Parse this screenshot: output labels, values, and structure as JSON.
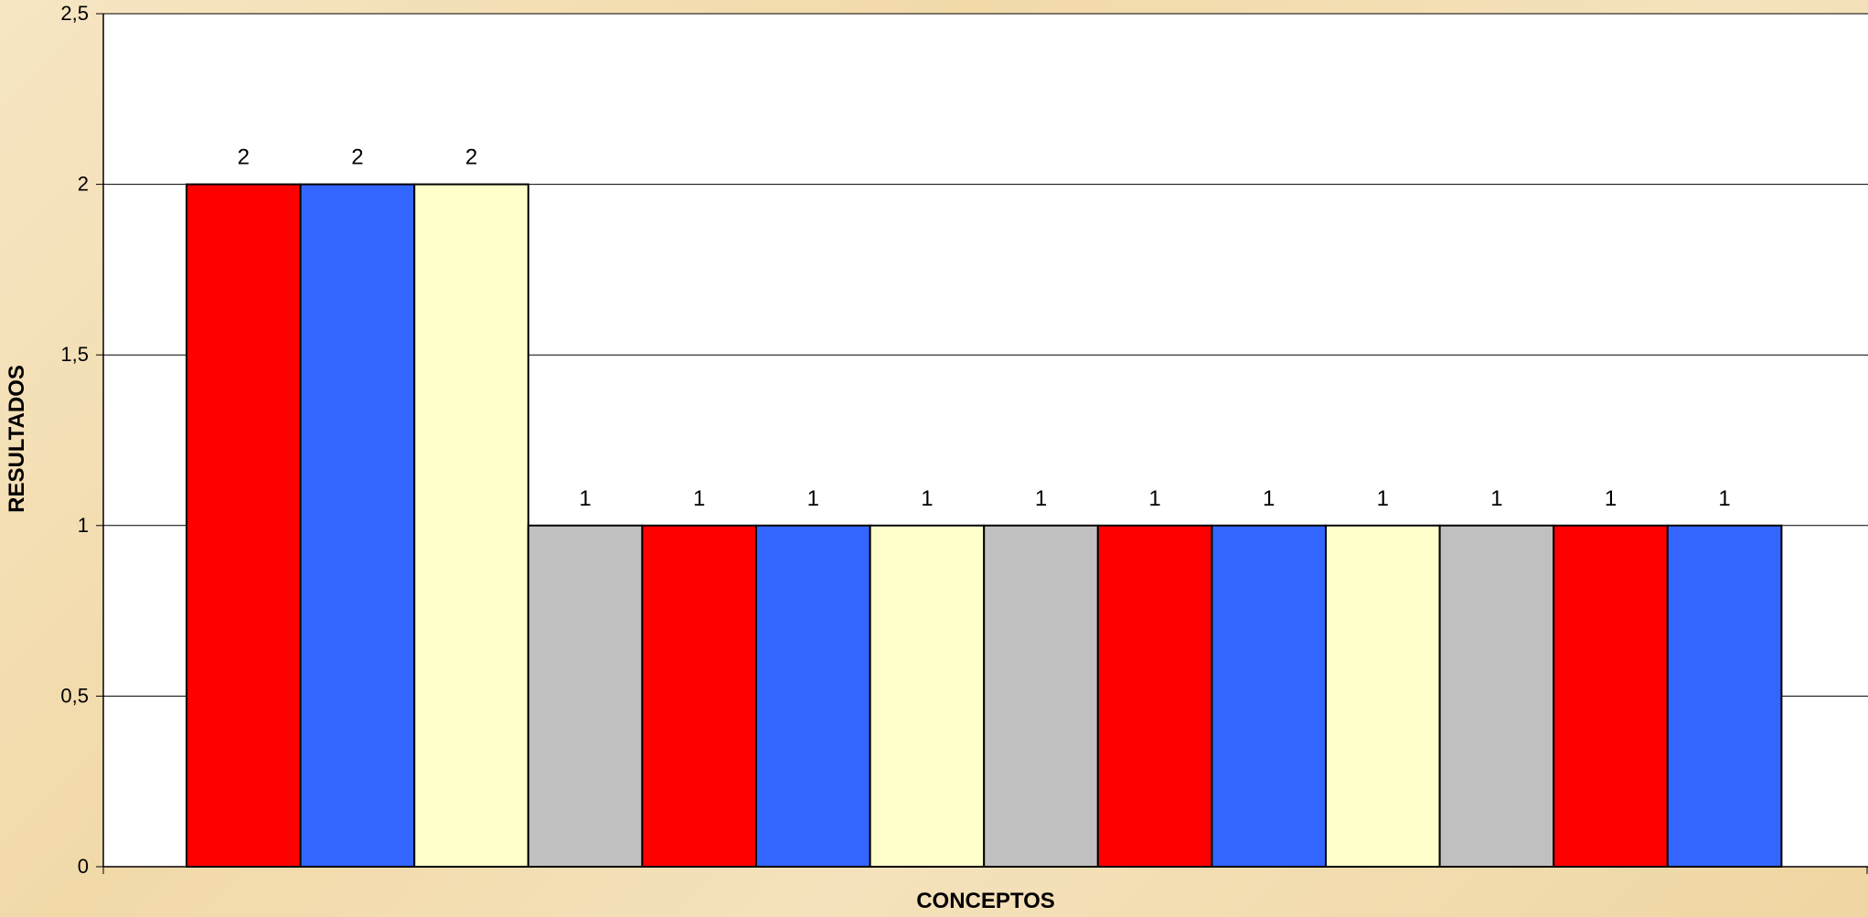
{
  "chart_data": {
    "type": "bar",
    "categories": [
      "",
      "",
      "",
      "",
      "",
      "",
      "",
      "",
      "",
      "",
      "",
      "",
      "",
      ""
    ],
    "values": [
      2,
      2,
      2,
      1,
      1,
      1,
      1,
      1,
      1,
      1,
      1,
      1,
      1,
      1
    ],
    "colors": [
      "#ff0000",
      "#3366ff",
      "#ffffcc",
      "#c0c0c0",
      "#ff0000",
      "#3366ff",
      "#ffffcc",
      "#c0c0c0",
      "#ff0000",
      "#3366ff",
      "#ffffcc",
      "#c0c0c0",
      "#ff0000",
      "#3366ff"
    ],
    "title": "",
    "xlabel": "CONCEPTOS",
    "ylabel": "RESULTADOS",
    "ylim": [
      0,
      2.5
    ],
    "yticks": [
      "0",
      "0,5",
      "1",
      "1,5",
      "2",
      "2,5"
    ],
    "data_labels": [
      "2",
      "2",
      "2",
      "1",
      "1",
      "1",
      "1",
      "1",
      "1",
      "1",
      "1",
      "1",
      "1",
      "1"
    ],
    "grid": true,
    "legend": "none"
  },
  "colors": {
    "plot_background": "#ffffff",
    "page_background": "#f3ddb0",
    "grid": "#000000"
  }
}
